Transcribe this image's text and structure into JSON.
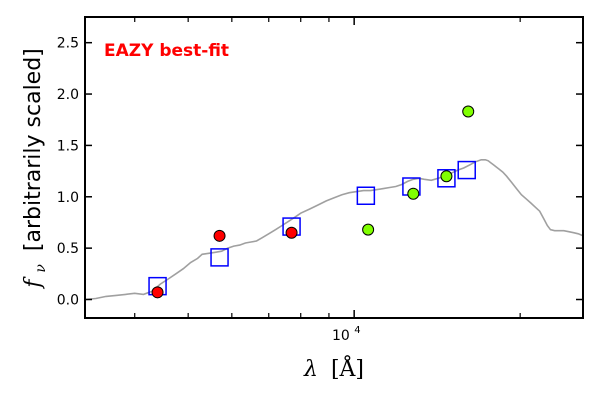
{
  "chart_data": {
    "type": "scatter",
    "title": "",
    "annotation": "EAZY best-fit",
    "annotation_color": "#ff0000",
    "xlabel_symbol": "λ",
    "xlabel_unit": "[Å]",
    "ylabel_symbol": "f",
    "ylabel_subscript": "ν",
    "ylabel_text": "[arbitrarily scaled]",
    "xscale": "log",
    "xlim": [
      3250,
      26000
    ],
    "ylim": [
      -0.18,
      2.75
    ],
    "yticks": [
      0.0,
      0.5,
      1.0,
      1.5,
      2.0,
      2.5
    ],
    "ytick_labels": [
      "0.0",
      "0.5",
      "1.0",
      "1.5",
      "2.0",
      "2.5"
    ],
    "xtick_major_label": {
      "base": "10",
      "exp": "4",
      "value": 10000
    },
    "xticks_minor": [
      4000,
      5000,
      6000,
      7000,
      8000,
      9000,
      20000
    ],
    "grid": false,
    "legend": "none",
    "series": [
      {
        "kind": "line",
        "color": "#a0a0a0",
        "x": [
          3250,
          3400,
          3550,
          3700,
          3850,
          4000,
          4150,
          4300,
          4450,
          4600,
          4750,
          4900,
          5050,
          5200,
          5300,
          5450,
          5600,
          5750,
          5900,
          6050,
          6200,
          6350,
          6500,
          6650,
          6800,
          7000,
          7200,
          7400,
          7600,
          7800,
          8000,
          8300,
          8600,
          8900,
          9200,
          9500,
          9800,
          10100,
          10400,
          10700,
          11000,
          11300,
          11600,
          11900,
          12200,
          12500,
          12800,
          13100,
          13400,
          13800,
          14200,
          14600,
          15000,
          15400,
          15800,
          16200,
          16600,
          17000,
          17300,
          17500,
          17700,
          17900,
          18100,
          18300,
          18600,
          18900,
          19300,
          19700,
          20100,
          20500,
          20900,
          21300,
          21700,
          22100,
          22400,
          22700,
          23100,
          23500,
          24000,
          24500,
          25000,
          25500,
          26000
        ],
        "y": [
          0.0,
          0.01,
          0.03,
          0.04,
          0.05,
          0.06,
          0.05,
          0.08,
          0.15,
          0.2,
          0.25,
          0.3,
          0.36,
          0.4,
          0.44,
          0.45,
          0.46,
          0.47,
          0.5,
          0.52,
          0.53,
          0.55,
          0.56,
          0.57,
          0.6,
          0.64,
          0.68,
          0.72,
          0.76,
          0.8,
          0.84,
          0.88,
          0.92,
          0.96,
          0.99,
          1.02,
          1.04,
          1.05,
          1.06,
          1.06,
          1.07,
          1.08,
          1.09,
          1.1,
          1.12,
          1.15,
          1.17,
          1.18,
          1.17,
          1.16,
          1.18,
          1.2,
          1.23,
          1.26,
          1.28,
          1.31,
          1.34,
          1.36,
          1.36,
          1.35,
          1.33,
          1.31,
          1.29,
          1.27,
          1.24,
          1.2,
          1.14,
          1.08,
          1.02,
          0.98,
          0.94,
          0.9,
          0.86,
          0.78,
          0.72,
          0.68,
          0.67,
          0.67,
          0.67,
          0.66,
          0.65,
          0.64,
          0.62
        ]
      },
      {
        "kind": "square",
        "color": "#0000ff",
        "x": [
          4400,
          5700,
          7700,
          10500,
          12700,
          14700,
          16000
        ],
        "y": [
          0.13,
          0.41,
          0.71,
          1.01,
          1.1,
          1.18,
          1.26
        ]
      },
      {
        "kind": "circle",
        "color": "#ff0000",
        "x": [
          4400,
          5700,
          7700
        ],
        "y": [
          0.07,
          0.62,
          0.65
        ]
      },
      {
        "kind": "circle",
        "color": "#80ff00",
        "x": [
          10600,
          12800,
          14700,
          16100
        ],
        "y": [
          0.68,
          1.03,
          1.2,
          1.83
        ]
      }
    ]
  }
}
